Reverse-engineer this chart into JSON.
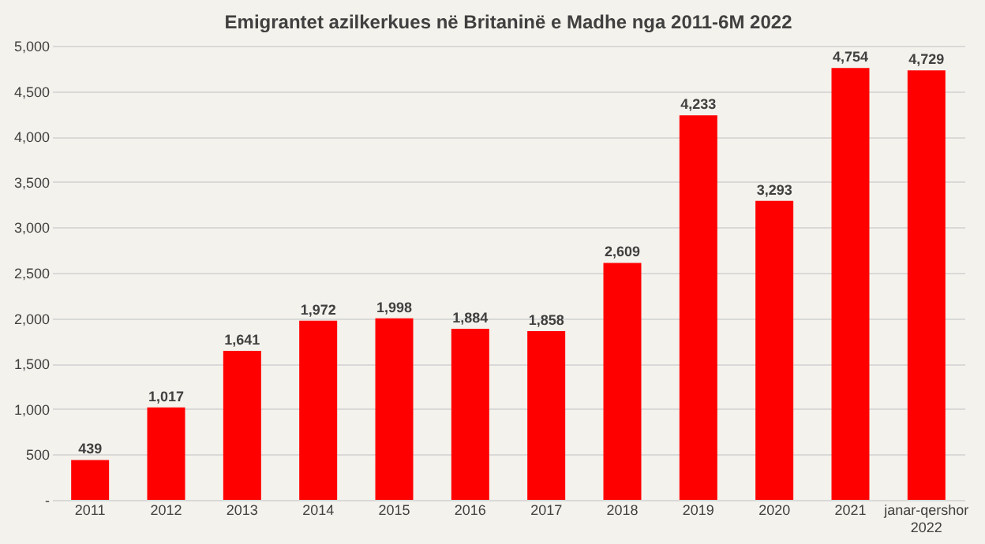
{
  "chart_data": {
    "type": "bar",
    "title": "Emigrantet azilkerkues në Britaninë e Madhe nga 2011-6M 2022",
    "categories": [
      "2011",
      "2012",
      "2013",
      "2014",
      "2015",
      "2016",
      "2017",
      "2018",
      "2019",
      "2020",
      "2021",
      "janar-qershor 2022"
    ],
    "values": [
      439,
      1017,
      1641,
      1972,
      1998,
      1884,
      1858,
      2609,
      4233,
      3293,
      4754,
      4729
    ],
    "color": "#ff0000",
    "ylim": [
      0,
      5000
    ],
    "yticks": [
      {
        "value": 0,
        "label": "-"
      },
      {
        "value": 500,
        "label": "500"
      },
      {
        "value": 1000,
        "label": "1,000"
      },
      {
        "value": 1500,
        "label": "1,500"
      },
      {
        "value": 2000,
        "label": "2,000"
      },
      {
        "value": 2500,
        "label": "2,500"
      },
      {
        "value": 3000,
        "label": "3,000"
      },
      {
        "value": 3500,
        "label": "3,500"
      },
      {
        "value": 4000,
        "label": "4,000"
      },
      {
        "value": 4500,
        "label": "4,500"
      },
      {
        "value": 5000,
        "label": "5,000"
      }
    ],
    "value_labels": [
      "439",
      "1,017",
      "1,641",
      "1,972",
      "1,998",
      "1,884",
      "1,858",
      "2,609",
      "4,233",
      "3,293",
      "4,754",
      "4,729"
    ],
    "grid": "y"
  }
}
